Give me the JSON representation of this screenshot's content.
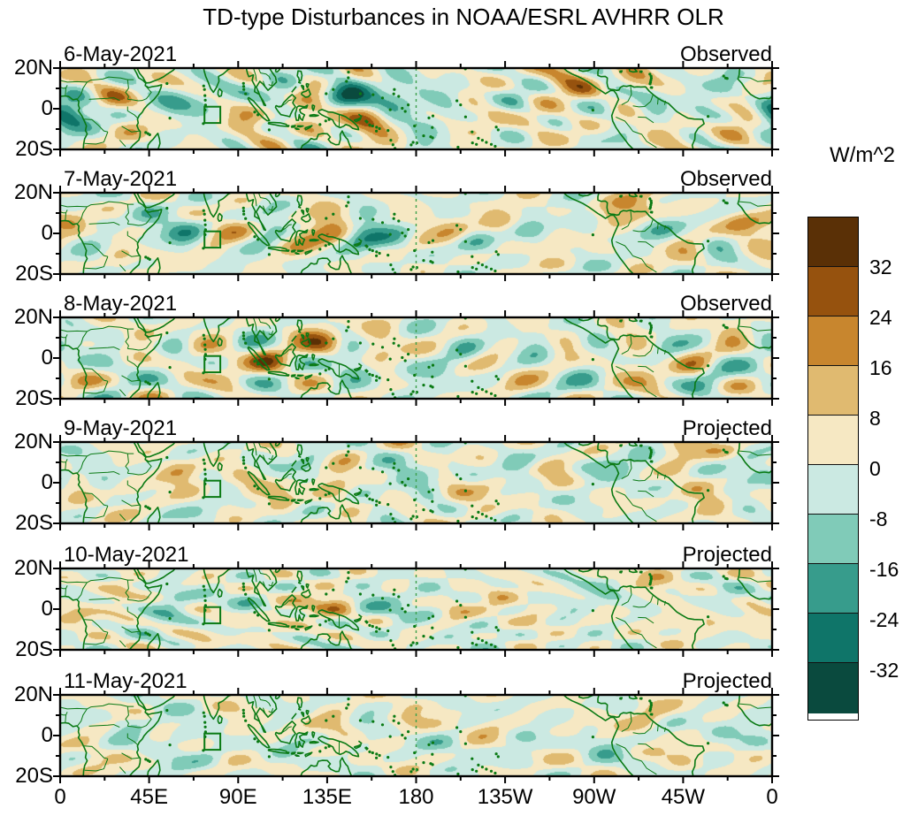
{
  "title": "TD-type Disturbances in NOAA/ESRL AVHRR OLR",
  "colorbar": {
    "unit_label": "W/m^2",
    "tick_labels": [
      "32",
      "24",
      "16",
      "8",
      "0",
      "-8",
      "-16",
      "-24",
      "-32"
    ],
    "colors_top_to_bottom": [
      "#5A3006",
      "#96520E",
      "#C8862E",
      "#E0BA70",
      "#F6E8C3",
      "#CBE9E2",
      "#80CBB8",
      "#379C8C",
      "#0F7569",
      "#0A4A3E"
    ]
  },
  "x_axis": {
    "tick_labels": [
      "0",
      "45E",
      "90E",
      "135E",
      "180",
      "135W",
      "90W",
      "45W",
      "0"
    ]
  },
  "y_axis": {
    "tick_labels": [
      "20N",
      "0",
      "20S"
    ]
  },
  "map_style": {
    "coast_color": "#0A7A14",
    "dateline_color": "#3DA04C",
    "axis_color": "#000000"
  },
  "chart_data": {
    "type": "heatmap",
    "subtype": "filled-contour longitude-latitude anomaly maps",
    "unit": "W/m^2",
    "contour_interval": 8,
    "contour_levels": [
      -32,
      -24,
      -16,
      -8,
      0,
      8,
      16,
      24,
      32
    ],
    "lon_range": [
      0,
      360
    ],
    "lat_range": [
      -20,
      20
    ],
    "lon_major_tick_deg": 45,
    "lon_minor_tick_deg": 22.5,
    "lat_major_tick_deg": 20,
    "lat_minor_tick_deg": 10,
    "dateline_reference_lon": 180,
    "reference_box_lonlat": [
      73,
      -7,
      81,
      1
    ],
    "panels": [
      {
        "date": "6-May-2021",
        "label": "Observed",
        "anomaly_centers": [
          [
            2,
            -1,
            -20
          ],
          [
            8,
            -4,
            -14
          ],
          [
            25,
            7,
            12
          ],
          [
            35,
            -10,
            10
          ],
          [
            58,
            1,
            -14
          ],
          [
            75,
            6,
            -10
          ],
          [
            95,
            -6,
            14
          ],
          [
            113,
            7,
            -18
          ],
          [
            127,
            3,
            26
          ],
          [
            144,
            6,
            -30
          ],
          [
            157,
            -5,
            30
          ],
          [
            167,
            3,
            -26
          ],
          [
            185,
            -9,
            -12
          ],
          [
            197,
            5,
            -10
          ],
          [
            207,
            2,
            10
          ],
          [
            218,
            -6,
            8
          ],
          [
            230,
            3,
            -12
          ],
          [
            243,
            -4,
            10
          ],
          [
            253,
            15,
            16
          ],
          [
            263,
            8,
            14
          ],
          [
            275,
            8,
            -12
          ],
          [
            288,
            13,
            14
          ],
          [
            300,
            3,
            -10
          ],
          [
            312,
            -8,
            12
          ],
          [
            322,
            -2,
            -12
          ],
          [
            335,
            9,
            -10
          ],
          [
            340,
            -10,
            10
          ],
          [
            349,
            -1,
            16
          ],
          [
            357,
            -7,
            -10
          ]
        ]
      },
      {
        "date": "7-May-2021",
        "label": "Observed",
        "anomaly_centers": [
          [
            5,
            4,
            12
          ],
          [
            15,
            -6,
            -12
          ],
          [
            30,
            -10,
            10
          ],
          [
            45,
            8,
            -10
          ],
          [
            63,
            -1,
            -20
          ],
          [
            75,
            -8,
            10
          ],
          [
            88,
            1,
            16
          ],
          [
            98,
            -8,
            -10
          ],
          [
            108,
            6,
            -14
          ],
          [
            120,
            -4,
            12
          ],
          [
            138,
            4,
            30
          ],
          [
            152,
            2,
            -30
          ],
          [
            170,
            -4,
            -10
          ],
          [
            181,
            3,
            10
          ],
          [
            197,
            2,
            10
          ],
          [
            210,
            -3,
            -12
          ],
          [
            222,
            6,
            12
          ],
          [
            237,
            1,
            -10
          ],
          [
            252,
            -5,
            8
          ],
          [
            265,
            5,
            -10
          ],
          [
            278,
            10,
            12
          ],
          [
            290,
            14,
            16
          ],
          [
            302,
            1,
            -12
          ],
          [
            318,
            -7,
            12
          ],
          [
            332,
            -4,
            -10
          ],
          [
            344,
            6,
            10
          ],
          [
            352,
            -2,
            14
          ]
        ]
      },
      {
        "date": "8-May-2021",
        "label": "Observed",
        "anomaly_centers": [
          [
            5,
            8,
            -10
          ],
          [
            10,
            -10,
            10
          ],
          [
            25,
            -5,
            -10
          ],
          [
            40,
            12,
            10
          ],
          [
            58,
            6,
            -12
          ],
          [
            70,
            5,
            14
          ],
          [
            85,
            -3,
            10
          ],
          [
            95,
            8,
            -10
          ],
          [
            105,
            0,
            16
          ],
          [
            132,
            8,
            24
          ],
          [
            145,
            4,
            -18
          ],
          [
            152,
            -4,
            -14
          ],
          [
            160,
            4,
            22
          ],
          [
            175,
            -8,
            -8
          ],
          [
            190,
            -5,
            -8
          ],
          [
            205,
            5,
            -12
          ],
          [
            215,
            -2,
            8
          ],
          [
            232,
            -8,
            8
          ],
          [
            240,
            3,
            -10
          ],
          [
            255,
            8,
            10
          ],
          [
            265,
            -8,
            -8
          ],
          [
            270,
            10,
            -12
          ],
          [
            285,
            12,
            10
          ],
          [
            294,
            -5,
            16
          ],
          [
            305,
            8,
            -12
          ],
          [
            322,
            2,
            10
          ],
          [
            330,
            -8,
            -10
          ],
          [
            340,
            14,
            12
          ],
          [
            352,
            5,
            -8
          ]
        ]
      },
      {
        "date": "9-May-2021",
        "label": "Projected",
        "anomaly_centers": [
          [
            8,
            -8,
            10
          ],
          [
            20,
            3,
            -8
          ],
          [
            35,
            -5,
            8
          ],
          [
            60,
            4,
            16
          ],
          [
            75,
            -12,
            -8
          ],
          [
            95,
            -3,
            10
          ],
          [
            112,
            -6,
            10
          ],
          [
            125,
            7,
            -12
          ],
          [
            142,
            3,
            22
          ],
          [
            152,
            5,
            -12
          ],
          [
            170,
            0,
            -8
          ],
          [
            185,
            3,
            -10
          ],
          [
            200,
            -5,
            8
          ],
          [
            215,
            -3,
            10
          ],
          [
            230,
            5,
            -12
          ],
          [
            250,
            3,
            12
          ],
          [
            265,
            -3,
            -8
          ],
          [
            280,
            8,
            -10
          ],
          [
            295,
            12,
            -10
          ],
          [
            313,
            16,
            18
          ],
          [
            320,
            -3,
            8
          ],
          [
            330,
            -8,
            10
          ],
          [
            345,
            0,
            -8
          ],
          [
            355,
            4,
            -10
          ]
        ]
      },
      {
        "date": "10-May-2021",
        "label": "Projected",
        "anomaly_centers": [
          [
            10,
            -5,
            8
          ],
          [
            30,
            5,
            10
          ],
          [
            45,
            -10,
            -8
          ],
          [
            57,
            3,
            -14
          ],
          [
            70,
            -15,
            8
          ],
          [
            95,
            5,
            -8
          ],
          [
            110,
            -5,
            8
          ],
          [
            125,
            2,
            8
          ],
          [
            140,
            3,
            16
          ],
          [
            152,
            2,
            -10
          ],
          [
            160,
            8,
            -8
          ],
          [
            170,
            -3,
            -8
          ],
          [
            185,
            5,
            -8
          ],
          [
            200,
            0,
            8
          ],
          [
            215,
            -12,
            -8
          ],
          [
            222,
            5,
            12
          ],
          [
            240,
            -5,
            8
          ],
          [
            258,
            3,
            -8
          ],
          [
            275,
            10,
            -8
          ],
          [
            300,
            17,
            14
          ],
          [
            310,
            -5,
            8
          ],
          [
            325,
            -8,
            8
          ],
          [
            338,
            5,
            -8
          ],
          [
            352,
            -2,
            8
          ]
        ]
      },
      {
        "date": "11-May-2021",
        "label": "Projected",
        "anomaly_centers": [
          [
            15,
            -8,
            8
          ],
          [
            35,
            5,
            -8
          ],
          [
            60,
            0,
            -10
          ],
          [
            75,
            -10,
            -8
          ],
          [
            90,
            3,
            8
          ],
          [
            115,
            -3,
            -8
          ],
          [
            140,
            5,
            12
          ],
          [
            155,
            0,
            -8
          ],
          [
            175,
            5,
            8
          ],
          [
            195,
            -5,
            -8
          ],
          [
            215,
            3,
            8
          ],
          [
            235,
            -3,
            -8
          ],
          [
            250,
            12,
            -8
          ],
          [
            255,
            5,
            8
          ],
          [
            275,
            -5,
            -8
          ],
          [
            295,
            8,
            8
          ],
          [
            300,
            15,
            10
          ],
          [
            315,
            -8,
            8
          ],
          [
            335,
            3,
            -8
          ],
          [
            352,
            8,
            -8
          ]
        ]
      }
    ]
  }
}
